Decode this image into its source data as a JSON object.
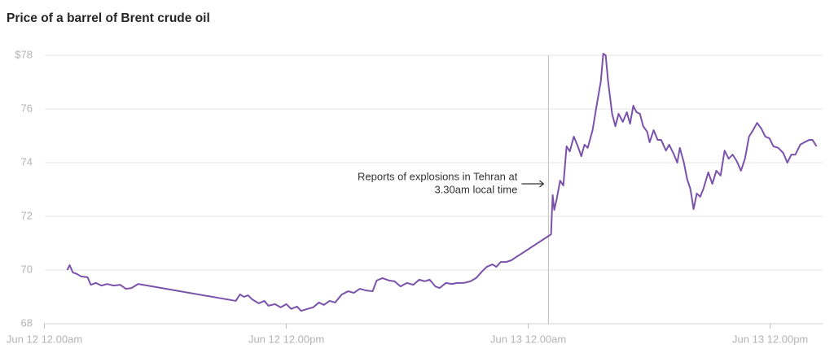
{
  "chart_data": {
    "type": "line",
    "title": "Price of a barrel of Brent crude oil",
    "xlim": [
      -1.8,
      38.6
    ],
    "xticks": [
      {
        "value": 0,
        "label": "Jun 12 12.00am"
      },
      {
        "value": 12,
        "label": "Jun 12 12.00pm"
      },
      {
        "value": 24,
        "label": "Jun 13 12.00am"
      },
      {
        "value": 36,
        "label": "Jun 13 12.00pm"
      }
    ],
    "ylim": [
      68,
      78.5
    ],
    "yticks": [
      68,
      70,
      72,
      74,
      76,
      {
        "value": 78,
        "label": "$78"
      }
    ],
    "grid": true,
    "annotation": {
      "lines": [
        "Reports of explosions in Tehran at",
        "3.30am local time"
      ],
      "x": 25
    },
    "series": [
      {
        "name": "Brent crude",
        "color": "#7b52ab",
        "x": [
          1.13,
          1.25,
          1.41,
          1.62,
          1.82,
          2.14,
          2.3,
          2.55,
          2.83,
          3.11,
          3.43,
          3.76,
          4.04,
          4.32,
          4.65,
          9.49,
          9.7,
          9.9,
          10.1,
          10.3,
          10.63,
          10.91,
          11.11,
          11.43,
          11.72,
          12.0,
          12.24,
          12.53,
          12.73,
          13.05,
          13.33,
          13.62,
          13.86,
          14.14,
          14.42,
          14.75,
          15.07,
          15.35,
          15.64,
          15.96,
          16.28,
          16.48,
          16.77,
          17.09,
          17.37,
          17.66,
          17.98,
          18.3,
          18.59,
          18.87,
          19.11,
          19.39,
          19.6,
          19.92,
          20.2,
          20.48,
          20.81,
          21.13,
          21.41,
          21.7,
          21.94,
          22.22,
          22.42,
          22.63,
          22.91,
          23.15,
          25.13,
          25.21,
          25.29,
          25.41,
          25.58,
          25.74,
          25.9,
          26.06,
          26.26,
          26.46,
          26.63,
          26.79,
          26.95,
          27.19,
          27.39,
          27.6,
          27.72,
          27.84,
          27.96,
          28.16,
          28.32,
          28.48,
          28.69,
          28.89,
          29.05,
          29.21,
          29.37,
          29.54,
          29.7,
          29.9,
          30.02,
          30.22,
          30.42,
          30.59,
          30.83,
          30.99,
          31.23,
          31.39,
          31.52,
          31.72,
          31.88,
          32.04,
          32.2,
          32.36,
          32.53,
          32.69,
          32.93,
          33.13,
          33.33,
          33.54,
          33.74,
          33.94,
          34.14,
          34.34,
          34.55,
          34.75,
          34.95,
          35.15,
          35.35,
          35.56,
          35.76,
          35.96,
          36.16,
          36.4,
          36.65,
          36.85,
          37.05,
          37.25,
          37.49,
          37.7,
          37.94,
          38.1,
          38.3
        ],
        "values": [
          70.0,
          70.18,
          69.91,
          69.85,
          69.76,
          69.73,
          69.45,
          69.52,
          69.42,
          69.48,
          69.42,
          69.45,
          69.3,
          69.33,
          69.48,
          68.85,
          69.09,
          69.0,
          69.06,
          68.91,
          68.76,
          68.85,
          68.67,
          68.73,
          68.61,
          68.73,
          68.55,
          68.64,
          68.48,
          68.55,
          68.61,
          68.79,
          68.7,
          68.85,
          68.79,
          69.09,
          69.21,
          69.15,
          69.3,
          69.24,
          69.21,
          69.61,
          69.7,
          69.61,
          69.58,
          69.39,
          69.52,
          69.45,
          69.64,
          69.58,
          69.64,
          69.39,
          69.33,
          69.52,
          69.48,
          69.52,
          69.52,
          69.58,
          69.7,
          69.94,
          70.12,
          70.21,
          70.12,
          70.3,
          70.3,
          70.36,
          71.33,
          72.79,
          72.24,
          72.64,
          73.33,
          73.15,
          74.61,
          74.42,
          74.97,
          74.61,
          74.24,
          74.67,
          74.55,
          75.21,
          76.12,
          77.03,
          78.06,
          78.0,
          77.03,
          75.82,
          75.36,
          75.82,
          75.52,
          75.88,
          75.45,
          76.12,
          75.88,
          75.82,
          75.36,
          75.15,
          74.76,
          75.21,
          74.85,
          74.85,
          74.45,
          74.67,
          74.3,
          74.0,
          74.55,
          74.0,
          73.39,
          73.03,
          72.27,
          72.85,
          72.73,
          73.03,
          73.64,
          73.21,
          73.7,
          73.52,
          74.45,
          74.15,
          74.3,
          74.06,
          73.7,
          74.15,
          74.97,
          75.21,
          75.48,
          75.27,
          74.97,
          74.91,
          74.61,
          74.55,
          74.36,
          74.0,
          74.3,
          74.3,
          74.67,
          74.76,
          74.85,
          74.85,
          74.61
        ]
      }
    ]
  }
}
